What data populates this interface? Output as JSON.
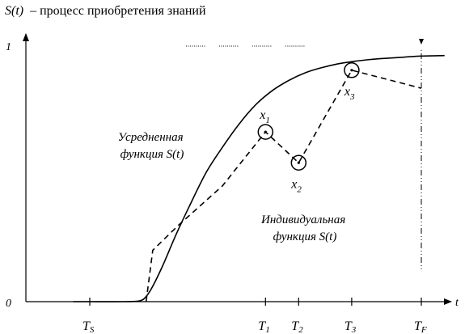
{
  "chart_data": {
    "type": "line",
    "title": {
      "var": "S(t)",
      "text": "– процесс приобретения знаний"
    },
    "ylim": [
      0,
      1
    ],
    "y_ticks": [
      "0",
      "1"
    ],
    "x_axis_label": "t",
    "x_ticks": [
      {
        "name": "T",
        "sub": "S",
        "t": 0
      },
      {
        "name": "T",
        "sub": "1",
        "t": 0.53
      },
      {
        "name": "T",
        "sub": "2",
        "t": 0.63
      },
      {
        "name": "T",
        "sub": "3",
        "t": 0.79
      },
      {
        "name": "T",
        "sub": "F",
        "t": 1
      }
    ],
    "series": [
      {
        "name_lines": [
          "Усредненная",
          "функция S(t)"
        ],
        "style": "solid",
        "color": "#000000",
        "points": [
          [
            -0.05,
            0.0
          ],
          [
            0.0,
            0.0
          ],
          [
            0.1,
            0.0
          ],
          [
            0.15,
            0.003
          ],
          [
            0.17,
            0.02
          ],
          [
            0.19,
            0.06
          ],
          [
            0.22,
            0.14
          ],
          [
            0.26,
            0.26
          ],
          [
            0.3,
            0.37
          ],
          [
            0.35,
            0.5
          ],
          [
            0.4,
            0.6
          ],
          [
            0.45,
            0.69
          ],
          [
            0.5,
            0.765
          ],
          [
            0.55,
            0.82
          ],
          [
            0.6,
            0.86
          ],
          [
            0.65,
            0.89
          ],
          [
            0.7,
            0.91
          ],
          [
            0.75,
            0.925
          ],
          [
            0.8,
            0.935
          ],
          [
            0.85,
            0.942
          ],
          [
            0.9,
            0.947
          ],
          [
            0.95,
            0.951
          ],
          [
            1.0,
            0.955
          ],
          [
            1.07,
            0.957
          ]
        ]
      },
      {
        "name_lines": [
          "Индивидуальная",
          "функция S(t)"
        ],
        "style": "dashed",
        "color": "#000000",
        "points": [
          [
            0.17,
            0.0
          ],
          [
            0.19,
            0.2
          ],
          [
            0.27,
            0.3
          ],
          [
            0.4,
            0.45
          ],
          [
            0.53,
            0.66
          ],
          [
            0.63,
            0.54
          ],
          [
            0.79,
            0.9
          ],
          [
            1.0,
            0.83
          ]
        ]
      }
    ],
    "marked_points": [
      {
        "label": "x",
        "sub": "1",
        "t": 0.53,
        "y": 0.66,
        "label_pos": "above"
      },
      {
        "label": "x",
        "sub": "2",
        "t": 0.63,
        "y": 0.54,
        "label_pos": "below"
      },
      {
        "label": "x",
        "sub": "3",
        "t": 0.79,
        "y": 0.9,
        "label_pos": "below"
      }
    ],
    "vertical_markers_t": [
      1.0
    ],
    "top_dotted_segments_t": [
      [
        0.29,
        0.35
      ],
      [
        0.39,
        0.45
      ],
      [
        0.49,
        0.55
      ],
      [
        0.59,
        0.65
      ]
    ]
  }
}
